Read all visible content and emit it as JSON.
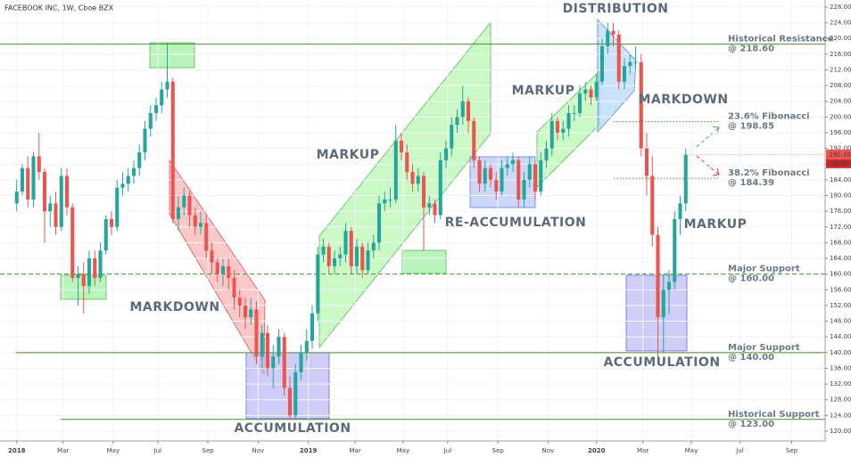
{
  "chart_data": {
    "type": "candlestick",
    "title": "FACEBOOK INC, 1W, Cboe BZX",
    "up_color": "#26a69a",
    "down_color": "#ef5350",
    "grid": true,
    "xlim": [
      -3,
      145
    ],
    "ylim": [
      117.5,
      229.8
    ],
    "xticks": [
      {
        "value": 0,
        "label": "2018"
      },
      {
        "value": 8.3,
        "label": "Mar"
      },
      {
        "value": 17.3,
        "label": "May"
      },
      {
        "value": 25.3,
        "label": "Jul"
      },
      {
        "value": 34.3,
        "label": "Sep"
      },
      {
        "value": 43.3,
        "label": "Nov"
      },
      {
        "value": 52.3,
        "label": "2019"
      },
      {
        "value": 60.7,
        "label": "Mar"
      },
      {
        "value": 69.3,
        "label": "May"
      },
      {
        "value": 77.3,
        "label": "Jul"
      },
      {
        "value": 86.3,
        "label": "Sep"
      },
      {
        "value": 95.3,
        "label": "Nov"
      },
      {
        "value": 104,
        "label": "2020"
      },
      {
        "value": 112.3,
        "label": "Mar"
      },
      {
        "value": 121,
        "label": "May"
      },
      {
        "value": 129.7,
        "label": "Jul"
      },
      {
        "value": 139,
        "label": "Sep"
      }
    ],
    "yticks": [
      {
        "value": 120,
        "label": "120.00"
      },
      {
        "value": 124,
        "label": "124.00"
      },
      {
        "value": 128,
        "label": "128.00"
      },
      {
        "value": 132,
        "label": "132.00"
      },
      {
        "value": 136,
        "label": "136.00"
      },
      {
        "value": 140,
        "label": "140.00"
      },
      {
        "value": 144,
        "label": "144.00"
      },
      {
        "value": 148,
        "label": "148.00"
      },
      {
        "value": 152,
        "label": "152.00"
      },
      {
        "value": 156,
        "label": "156.00"
      },
      {
        "value": 160,
        "label": "160.00"
      },
      {
        "value": 164,
        "label": "164.00"
      },
      {
        "value": 168,
        "label": "168.00"
      },
      {
        "value": 172,
        "label": "172.00"
      },
      {
        "value": 176,
        "label": "176.00"
      },
      {
        "value": 180,
        "label": "180.00"
      },
      {
        "value": 184,
        "label": "184.00"
      },
      {
        "value": 188,
        "label": "188.00"
      },
      {
        "value": 192,
        "label": "192.00"
      },
      {
        "value": 196,
        "label": "196.00"
      },
      {
        "value": 200,
        "label": "200.00"
      },
      {
        "value": 204,
        "label": "204.00"
      },
      {
        "value": 208,
        "label": "208.00"
      },
      {
        "value": 212,
        "label": "212.00"
      },
      {
        "value": 216,
        "label": "216.00"
      },
      {
        "value": 220,
        "label": "220.00"
      },
      {
        "value": 224,
        "label": "224.00"
      },
      {
        "value": 228,
        "label": "228.00"
      }
    ],
    "candles": [
      [
        178,
        184,
        176,
        181
      ],
      [
        181,
        188,
        180,
        187
      ],
      [
        187,
        190,
        177,
        179
      ],
      [
        179,
        191,
        177,
        190
      ],
      [
        190,
        196,
        184,
        186
      ],
      [
        186,
        187,
        168,
        176
      ],
      [
        176,
        180,
        172,
        178
      ],
      [
        178,
        181,
        170,
        172
      ],
      [
        172,
        187,
        171,
        185
      ],
      [
        185,
        187,
        175,
        177
      ],
      [
        177,
        178,
        158,
        159
      ],
      [
        159,
        162,
        152,
        160
      ],
      [
        160,
        163,
        150,
        157
      ],
      [
        157,
        166,
        155,
        164
      ],
      [
        164,
        166,
        157,
        159
      ],
      [
        159,
        168,
        158,
        166
      ],
      [
        166,
        175,
        165,
        174
      ],
      [
        174,
        176,
        170,
        172
      ],
      [
        172,
        184,
        171,
        182
      ],
      [
        182,
        186,
        180,
        183
      ],
      [
        183,
        187,
        181,
        185
      ],
      [
        185,
        189,
        183,
        187
      ],
      [
        187,
        193,
        185,
        191
      ],
      [
        191,
        199,
        189,
        197
      ],
      [
        197,
        203,
        195,
        201
      ],
      [
        201,
        205,
        199,
        203
      ],
      [
        203,
        209,
        201,
        207
      ],
      [
        207,
        219,
        205,
        209
      ],
      [
        209,
        210,
        173,
        174
      ],
      [
        174,
        180,
        171,
        177
      ],
      [
        177,
        182,
        175,
        180
      ],
      [
        180,
        181,
        172,
        175
      ],
      [
        175,
        177,
        170,
        172
      ],
      [
        172,
        176,
        170,
        173
      ],
      [
        173,
        175,
        164,
        166
      ],
      [
        166,
        168,
        160,
        163
      ],
      [
        163,
        164,
        158,
        160
      ],
      [
        160,
        164,
        157,
        162
      ],
      [
        162,
        164,
        156,
        159
      ],
      [
        159,
        161,
        151,
        154
      ],
      [
        154,
        156,
        149,
        152
      ],
      [
        152,
        154,
        146,
        149
      ],
      [
        149,
        154,
        147,
        151
      ],
      [
        151,
        153,
        137,
        139
      ],
      [
        139,
        147,
        136,
        145
      ],
      [
        145,
        147,
        134,
        136
      ],
      [
        136,
        142,
        131,
        139
      ],
      [
        139,
        146,
        137,
        144
      ],
      [
        144,
        145,
        129,
        131
      ],
      [
        131,
        134,
        123,
        124
      ],
      [
        124,
        137,
        123,
        135
      ],
      [
        135,
        142,
        133,
        140
      ],
      [
        140,
        146,
        138,
        143
      ],
      [
        143,
        152,
        141,
        150
      ],
      [
        150,
        167,
        148,
        165
      ],
      [
        165,
        169,
        163,
        167
      ],
      [
        167,
        168,
        160,
        162
      ],
      [
        162,
        166,
        160,
        164
      ],
      [
        164,
        167,
        162,
        165
      ],
      [
        165,
        173,
        163,
        171
      ],
      [
        171,
        172,
        160,
        162
      ],
      [
        162,
        169,
        160,
        167
      ],
      [
        167,
        168,
        159,
        161
      ],
      [
        161,
        168,
        160,
        166
      ],
      [
        166,
        170,
        164,
        168
      ],
      [
        168,
        180,
        166,
        178
      ],
      [
        178,
        181,
        176,
        179
      ],
      [
        179,
        182,
        177,
        179
      ],
      [
        179,
        198,
        178,
        194
      ],
      [
        194,
        196,
        189,
        191
      ],
      [
        191,
        193,
        184,
        186
      ],
      [
        186,
        188,
        181,
        183
      ],
      [
        183,
        187,
        181,
        185
      ],
      [
        185,
        186,
        166,
        177
      ],
      [
        177,
        180,
        175,
        178
      ],
      [
        178,
        179,
        173,
        175
      ],
      [
        175,
        191,
        174,
        189
      ],
      [
        189,
        194,
        187,
        192
      ],
      [
        192,
        200,
        190,
        198
      ],
      [
        198,
        202,
        196,
        200
      ],
      [
        200,
        208,
        198,
        204
      ],
      [
        204,
        205,
        196,
        199
      ],
      [
        199,
        200,
        187,
        189
      ],
      [
        189,
        190,
        181,
        183
      ],
      [
        183,
        189,
        181,
        187
      ],
      [
        187,
        188,
        182,
        184
      ],
      [
        184,
        186,
        179,
        181
      ],
      [
        181,
        189,
        180,
        187
      ],
      [
        187,
        190,
        185,
        188
      ],
      [
        188,
        191,
        186,
        189
      ],
      [
        189,
        190,
        177,
        179
      ],
      [
        179,
        186,
        177,
        184
      ],
      [
        184,
        190,
        182,
        188
      ],
      [
        188,
        189,
        179,
        181
      ],
      [
        181,
        191,
        180,
        189
      ],
      [
        189,
        194,
        187,
        192
      ],
      [
        192,
        201,
        190,
        199
      ],
      [
        199,
        200,
        194,
        196
      ],
      [
        196,
        199,
        194,
        197
      ],
      [
        197,
        203,
        195,
        201
      ],
      [
        201,
        203,
        199,
        201
      ],
      [
        201,
        208,
        200,
        206
      ],
      [
        206,
        209,
        204,
        207
      ],
      [
        207,
        208,
        203,
        205
      ],
      [
        205,
        211,
        204,
        209
      ],
      [
        209,
        220,
        208,
        218
      ],
      [
        218,
        224,
        216,
        222
      ],
      [
        222,
        224,
        218,
        221
      ],
      [
        221,
        222,
        207,
        209
      ],
      [
        209,
        215,
        207,
        213
      ],
      [
        213,
        216,
        211,
        214
      ],
      [
        214,
        218,
        212,
        214
      ],
      [
        214,
        216,
        190,
        192
      ],
      [
        192,
        196,
        180,
        185
      ],
      [
        185,
        190,
        167,
        170
      ],
      [
        170,
        172,
        137,
        149
      ],
      [
        149,
        160,
        140,
        156
      ],
      [
        156,
        161,
        150,
        158
      ],
      [
        158,
        176,
        156,
        174
      ],
      [
        174,
        180,
        170,
        178
      ],
      [
        178,
        192,
        176,
        190.38
      ]
    ],
    "levels": [
      {
        "label": "Historical Resistance",
        "value": 218.6,
        "value_label": "@ 218.60",
        "style": "solid"
      },
      {
        "label": "23.6% Fibonacci",
        "value": 198.85,
        "value_label": "@ 198.85",
        "style": "dotted"
      },
      {
        "label": "38.2% Fibonacci",
        "value": 184.39,
        "value_label": "@ 184.39",
        "style": "dotted"
      },
      {
        "label": "Major Support",
        "value": 160,
        "value_label": "@ 160.00",
        "style": "dashed"
      },
      {
        "label": "Major Support",
        "value": 140,
        "value_label": "@ 140.00",
        "style": "solid"
      },
      {
        "label": "Historical Support",
        "value": 123,
        "value_label": "@ 123.00",
        "style": "solid"
      }
    ],
    "last_price": {
      "value": 190.38,
      "label": "190.38"
    },
    "countdown": "4d 5h",
    "annotations": [
      "DISTRIBUTION",
      "MARKUP",
      "MARKUP",
      "MARKDOWN",
      "MARKDOWN",
      "RE-ACCUMULATION",
      "ACCUMULATION",
      "ACCUMULATION",
      "MARKUP"
    ]
  }
}
